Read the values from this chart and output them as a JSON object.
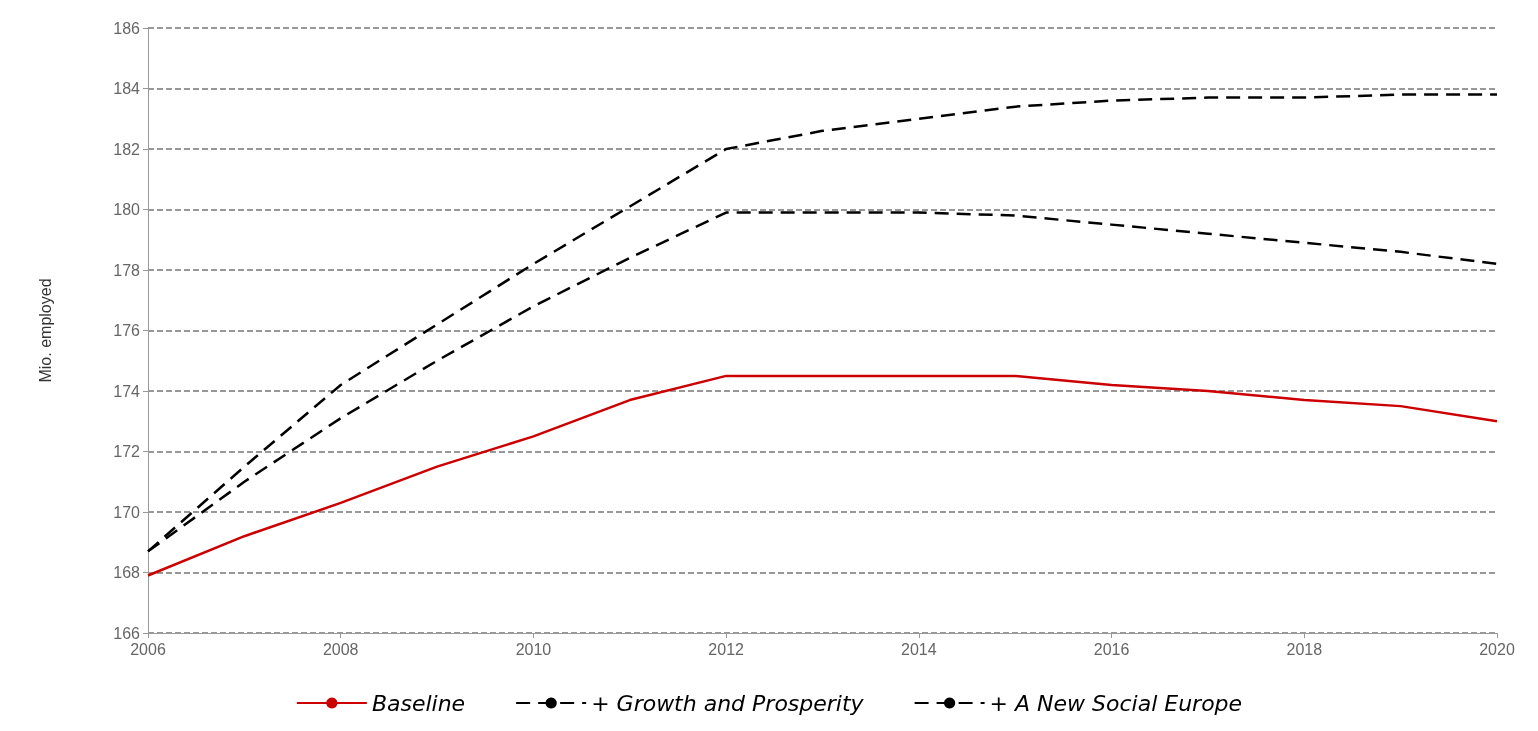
{
  "chart_data": {
    "type": "line",
    "ylabel": "Mio. employed",
    "x": [
      2006,
      2007,
      2008,
      2009,
      2010,
      2011,
      2012,
      2013,
      2014,
      2015,
      2016,
      2017,
      2018,
      2019,
      2020
    ],
    "xlim": [
      2006,
      2020
    ],
    "xticks": [
      2006,
      2008,
      2010,
      2012,
      2014,
      2016,
      2018,
      2020
    ],
    "ylim": [
      166,
      186
    ],
    "yticks": [
      166,
      168,
      170,
      172,
      174,
      176,
      178,
      180,
      182,
      184,
      186
    ],
    "grid": "y",
    "legend": "bottom",
    "marker": "none",
    "series": [
      {
        "name": "Baseline",
        "color": "#cc0000",
        "line_style": "solid",
        "values": [
          167.9,
          169.2,
          170.3,
          171.5,
          172.5,
          173.7,
          174.5,
          174.5,
          174.5,
          174.5,
          174.2,
          174.0,
          173.7,
          173.5,
          173.0
        ]
      },
      {
        "name": "+ Growth and Prosperity",
        "color": "#000000",
        "line_style": "dashed",
        "values": [
          168.7,
          171.5,
          174.2,
          176.2,
          178.2,
          180.1,
          182.0,
          182.6,
          183.0,
          183.4,
          183.6,
          183.7,
          183.7,
          183.8,
          183.8
        ]
      },
      {
        "name": "+ A New Social Europe",
        "color": "#000000",
        "line_style": "dashed",
        "values": [
          168.7,
          171.0,
          173.1,
          175.0,
          176.8,
          178.4,
          179.9,
          179.9,
          179.9,
          179.8,
          179.5,
          179.2,
          178.9,
          178.6,
          178.2
        ]
      }
    ]
  }
}
